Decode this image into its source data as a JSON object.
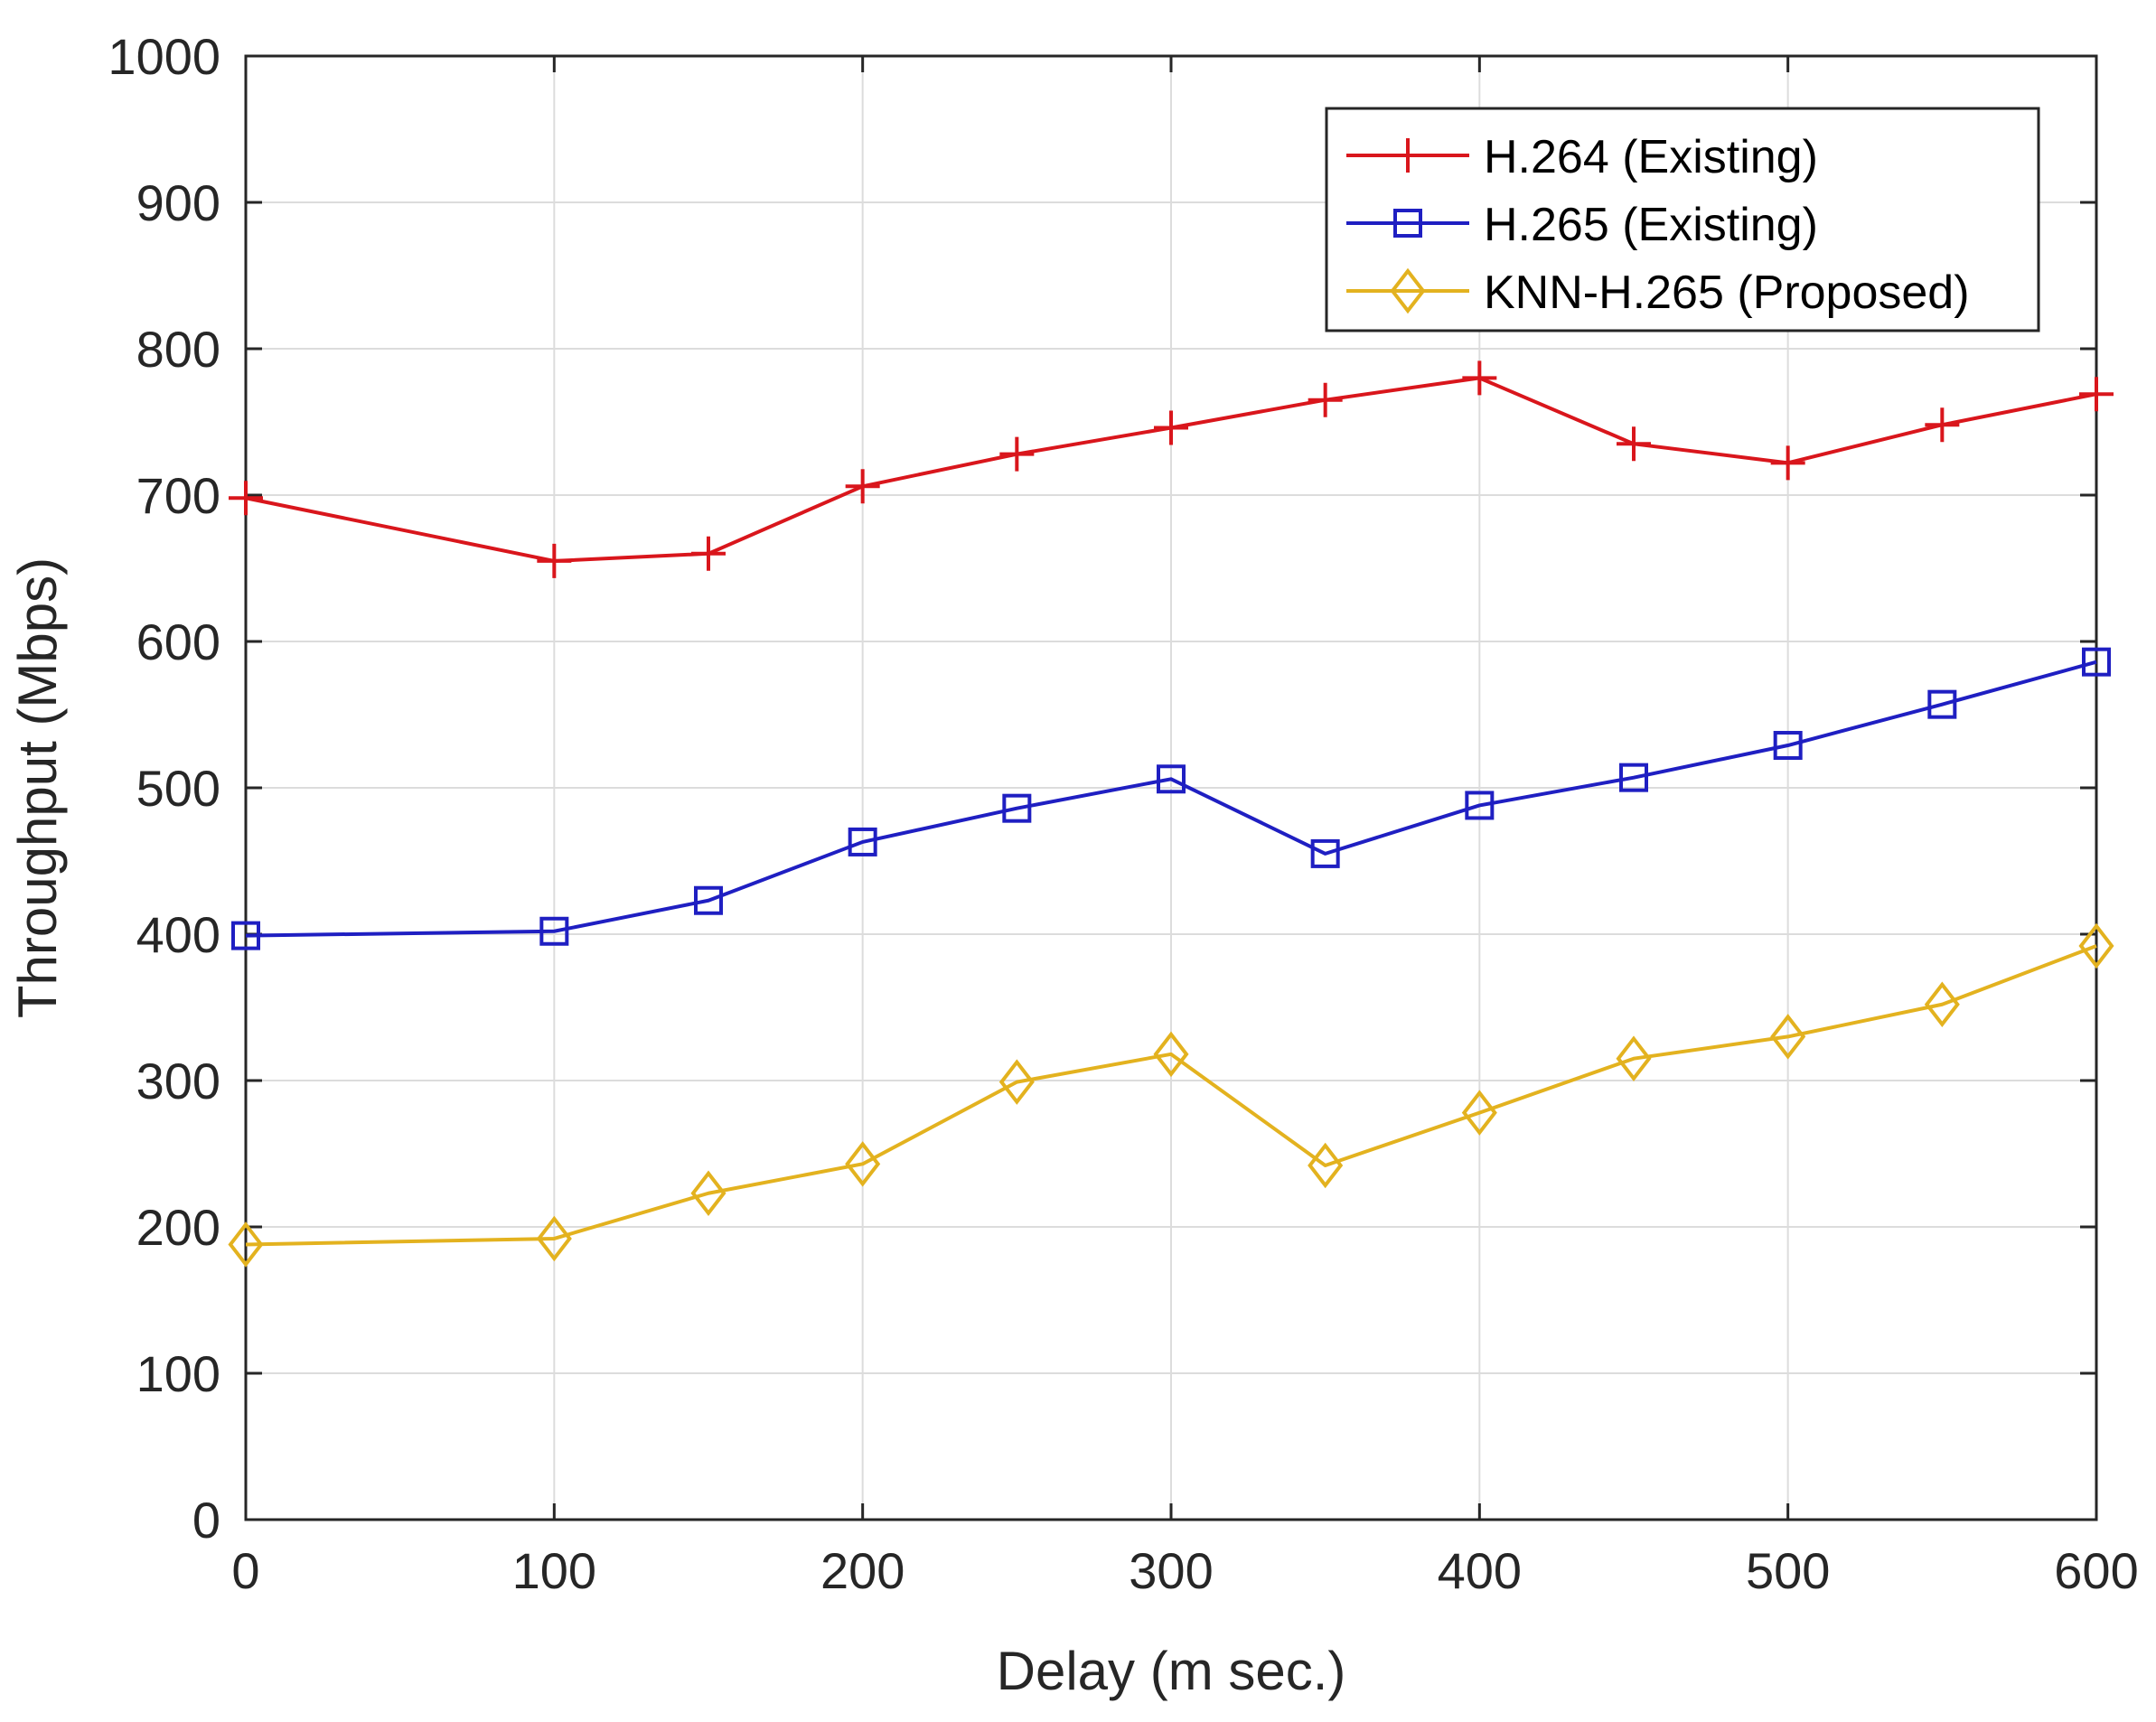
{
  "chart_data": {
    "type": "line",
    "title": "",
    "xlabel": "Delay (m sec.)",
    "ylabel": "Throughput (Mbps)",
    "xlim": [
      0,
      600
    ],
    "ylim": [
      0,
      1000
    ],
    "xticks": [
      0,
      100,
      200,
      300,
      400,
      500,
      600
    ],
    "yticks": [
      0,
      100,
      200,
      300,
      400,
      500,
      600,
      700,
      800,
      900,
      1000
    ],
    "grid": true,
    "legend_position": "top-right",
    "x": [
      0,
      100,
      150,
      200,
      250,
      300,
      350,
      400,
      450,
      500,
      550,
      600
    ],
    "series": [
      {
        "name": "H.264 (Existing)",
        "color": "#d9161c",
        "marker": "plus",
        "values": [
          698,
          655,
          660,
          706,
          728,
          746,
          765,
          780,
          735,
          722,
          748,
          769
        ]
      },
      {
        "name": "H.265 (Existing)",
        "color": "#1f1fc2",
        "marker": "square",
        "values": [
          399,
          402,
          423,
          463,
          486,
          506,
          455,
          488,
          507,
          529,
          557,
          586
        ]
      },
      {
        "name": "KNN-H.265 (Proposed)",
        "color": "#e3b21f",
        "marker": "diamond",
        "values": [
          188,
          192,
          223,
          243,
          299,
          318,
          242,
          278,
          315,
          330,
          352,
          392
        ]
      }
    ]
  }
}
